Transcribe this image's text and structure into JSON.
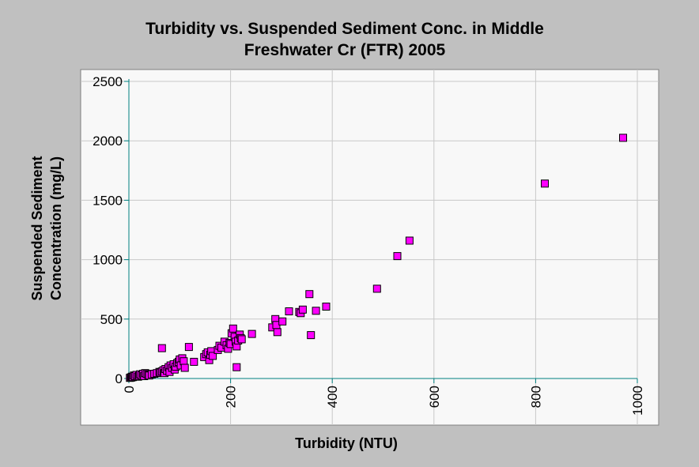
{
  "chart_data": {
    "type": "scatter",
    "title": [
      "Turbidity vs. Suspended Sediment Conc. in Middle",
      "Freshwater Cr (FTR) 2005"
    ],
    "xlabel": "Turbidity (NTU)",
    "ylabel": [
      "Suspended Sediment",
      "Concentration (mg/L)"
    ],
    "xlim": [
      0,
      1000
    ],
    "ylim": [
      0,
      2500
    ],
    "xticks": [
      "0",
      "200",
      "400",
      "600",
      "800",
      "1000"
    ],
    "yticks": [
      "0",
      "500",
      "1000",
      "1500",
      "2000",
      "2500"
    ],
    "grid": true,
    "legend": "none",
    "colors": {
      "background": "#c0c0c0",
      "plot_area": "#f8f8f8",
      "gridline": "#c8c8c8",
      "axis": "#008080",
      "marker_fill": "#ff00ff",
      "marker_edge": "#000000"
    },
    "x": [
      2,
      4,
      5,
      6,
      8,
      10,
      12,
      15,
      18,
      20,
      22,
      25,
      28,
      30,
      32,
      35,
      38,
      40,
      45,
      50,
      55,
      60,
      62,
      65,
      68,
      70,
      72,
      75,
      78,
      80,
      82,
      85,
      88,
      90,
      92,
      95,
      98,
      100,
      102,
      105,
      108,
      110,
      65,
      118,
      128,
      148,
      152,
      155,
      158,
      160,
      162,
      165,
      175,
      178,
      182,
      188,
      192,
      195,
      198,
      200,
      202,
      205,
      208,
      210,
      212,
      215,
      218,
      220,
      222,
      212,
      242,
      282,
      288,
      292,
      290,
      302,
      315,
      335,
      338,
      342,
      355,
      358,
      368,
      388,
      488,
      528,
      552,
      818,
      972
    ],
    "y": [
      5,
      10,
      8,
      15,
      12,
      25,
      20,
      30,
      15,
      22,
      35,
      28,
      40,
      20,
      45,
      38,
      30,
      25,
      35,
      40,
      45,
      55,
      50,
      60,
      70,
      45,
      80,
      65,
      95,
      55,
      110,
      90,
      120,
      75,
      100,
      130,
      140,
      160,
      110,
      170,
      145,
      90,
      255,
      265,
      140,
      180,
      205,
      220,
      155,
      200,
      230,
      190,
      240,
      275,
      260,
      310,
      280,
      250,
      300,
      290,
      380,
      420,
      350,
      310,
      270,
      320,
      370,
      340,
      330,
      95,
      375,
      430,
      500,
      390,
      450,
      480,
      565,
      560,
      550,
      580,
      710,
      365,
      570,
      605,
      755,
      1030,
      1160,
      1640,
      2025
    ]
  }
}
